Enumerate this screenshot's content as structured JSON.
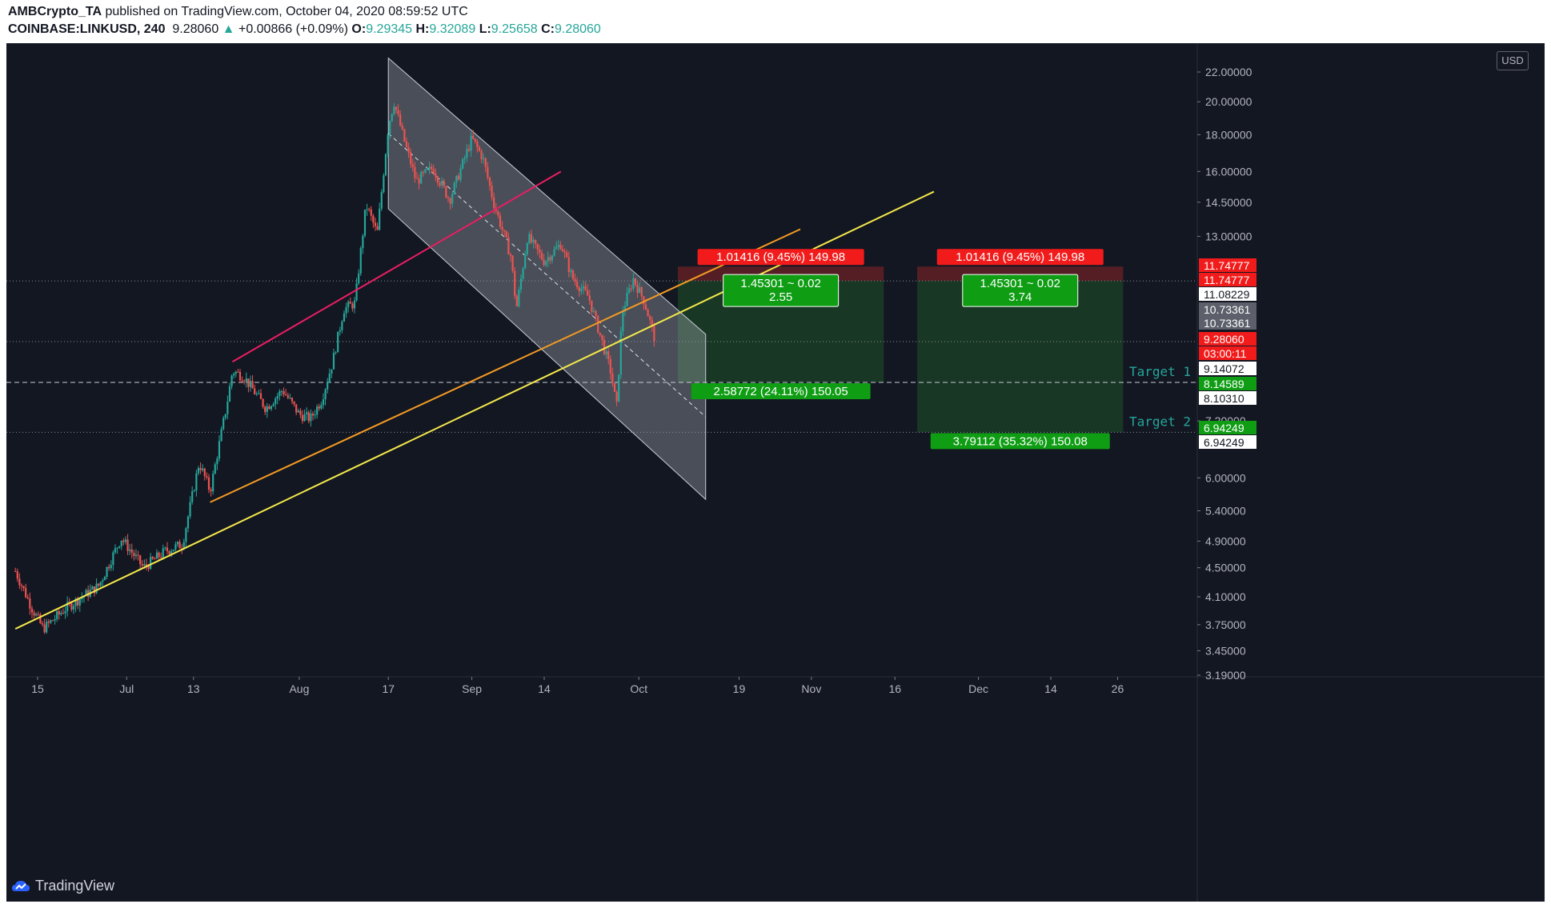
{
  "header": {
    "publisher": "AMBCrypto_TA",
    "published_text": "published on TradingView.com, October 04, 2020 08:59:52 UTC",
    "symbol": "COINBASE:LINKUSD, 240",
    "last": "9.28060",
    "change": "+0.00866 (+0.09%)",
    "o_label": "O:",
    "o": "9.29345",
    "h_label": "H:",
    "h": "9.32089",
    "l_label": "L:",
    "l": "9.25658",
    "c_label": "C:",
    "c": "9.28060"
  },
  "currency": "USD",
  "footer": {
    "brand": "TradingView"
  },
  "colors": {
    "background": "#131722",
    "up": "#26a69a",
    "down": "#ef5350",
    "yellow_line": "#f5e94a",
    "orange_line": "#f59b23",
    "pink_line": "#e91e63",
    "stop_zone": "#5c1f25",
    "target_zone": "#1b3b26"
  },
  "chart_data": {
    "type": "candlestick",
    "title": "",
    "price_scale": "log",
    "ylim": [
      2.9,
      24.5
    ],
    "x_ticks": [
      "15",
      "Jul",
      "13",
      "Aug",
      "17",
      "Sep",
      "14",
      "Oct",
      "19",
      "Nov",
      "16",
      "Dec",
      "14",
      "26"
    ],
    "y_ticks": [
      "22.00000",
      "20.00000",
      "18.00000",
      "16.00000",
      "14.50000",
      "13.00000",
      "7.20000",
      "6.00000",
      "5.40000",
      "4.90000",
      "4.50000",
      "4.10000",
      "3.75000",
      "3.45000",
      "3.19000"
    ],
    "price_path": [
      {
        "date": "2020-06-11",
        "price": 4.45
      },
      {
        "date": "2020-06-14",
        "price": 3.95
      },
      {
        "date": "2020-06-16",
        "price": 3.7
      },
      {
        "date": "2020-06-20",
        "price": 3.95
      },
      {
        "date": "2020-06-26",
        "price": 4.25
      },
      {
        "date": "2020-06-30",
        "price": 4.95
      },
      {
        "date": "2020-07-04",
        "price": 4.5
      },
      {
        "date": "2020-07-08",
        "price": 4.75
      },
      {
        "date": "2020-07-11",
        "price": 4.85
      },
      {
        "date": "2020-07-14",
        "price": 6.3
      },
      {
        "date": "2020-07-16",
        "price": 5.75
      },
      {
        "date": "2020-07-19",
        "price": 7.6
      },
      {
        "date": "2020-07-20",
        "price": 8.45
      },
      {
        "date": "2020-07-22",
        "price": 8.3
      },
      {
        "date": "2020-07-26",
        "price": 7.5
      },
      {
        "date": "2020-07-29",
        "price": 7.95
      },
      {
        "date": "2020-08-01",
        "price": 7.35
      },
      {
        "date": "2020-08-03",
        "price": 7.25
      },
      {
        "date": "2020-08-05",
        "price": 7.7
      },
      {
        "date": "2020-08-07",
        "price": 8.7
      },
      {
        "date": "2020-08-09",
        "price": 10.3
      },
      {
        "date": "2020-08-11",
        "price": 10.5
      },
      {
        "date": "2020-08-13",
        "price": 14.4
      },
      {
        "date": "2020-08-15",
        "price": 13.1
      },
      {
        "date": "2020-08-17",
        "price": 18.5
      },
      {
        "date": "2020-08-18",
        "price": 20.0
      },
      {
        "date": "2020-08-20",
        "price": 17.5
      },
      {
        "date": "2020-08-22",
        "price": 15.5
      },
      {
        "date": "2020-08-25",
        "price": 16.2
      },
      {
        "date": "2020-08-28",
        "price": 14.6
      },
      {
        "date": "2020-09-01",
        "price": 17.8
      },
      {
        "date": "2020-09-03",
        "price": 16.7
      },
      {
        "date": "2020-09-05",
        "price": 14.4
      },
      {
        "date": "2020-09-08",
        "price": 12.2
      },
      {
        "date": "2020-09-09",
        "price": 10.3
      },
      {
        "date": "2020-09-11",
        "price": 13.0
      },
      {
        "date": "2020-09-14",
        "price": 12.0
      },
      {
        "date": "2020-09-17",
        "price": 12.7
      },
      {
        "date": "2020-09-19",
        "price": 11.4
      },
      {
        "date": "2020-09-22",
        "price": 10.7
      },
      {
        "date": "2020-09-24",
        "price": 9.5
      },
      {
        "date": "2020-09-26",
        "price": 8.4
      },
      {
        "date": "2020-09-27",
        "price": 7.5
      },
      {
        "date": "2020-09-28",
        "price": 10.2
      },
      {
        "date": "2020-09-30",
        "price": 11.35
      },
      {
        "date": "2020-10-02",
        "price": 10.55
      },
      {
        "date": "2020-10-04",
        "price": 9.28
      }
    ],
    "lines": [
      {
        "name": "rising-support",
        "color": "#f5e94a",
        "from": {
          "date": "2020-06-11",
          "price": 3.7
        },
        "to": {
          "date": "2020-11-23",
          "price": 15.0
        }
      },
      {
        "name": "orange-trendline",
        "color": "#f59b23",
        "from": {
          "date": "2020-07-16",
          "price": 5.55
        },
        "to": {
          "date": "2020-10-30",
          "price": 13.3
        }
      },
      {
        "name": "pink-trendline",
        "color": "#e91e63",
        "from": {
          "date": "2020-07-20",
          "price": 8.7
        },
        "to": {
          "date": "2020-09-17",
          "price": 16.0
        }
      }
    ],
    "channel": {
      "upper_start": {
        "date": "2020-08-17",
        "price": 23.0
      },
      "upper_end": {
        "date": "2020-10-13",
        "price": 9.5
      },
      "lower_start": {
        "date": "2020-08-17",
        "price": 14.2
      },
      "lower_end": {
        "date": "2020-10-13",
        "price": 5.6
      }
    },
    "horizontal_levels": [
      11.27,
      9.28,
      8.14589,
      6.94249
    ],
    "right_labels": [
      {
        "text": "11.74777",
        "style": "red"
      },
      {
        "text": "11.74777",
        "style": "red"
      },
      {
        "text": "11.08229",
        "style": "white"
      },
      {
        "text": "10.73361",
        "style": "gray"
      },
      {
        "text": "10.73361",
        "style": "gray"
      },
      {
        "text": "9.28060",
        "style": "red"
      },
      {
        "text": "03:00:11",
        "style": "red"
      },
      {
        "text": "9.14072",
        "style": "white"
      },
      {
        "text": "8.14589",
        "style": "green"
      },
      {
        "text": "8.10310",
        "style": "white"
      },
      {
        "text": "6.94249",
        "style": "green"
      },
      {
        "text": "6.94249",
        "style": "white"
      }
    ],
    "positions": [
      {
        "stop_label": "1.01416 (9.45%) 149.98",
        "rr_line1": "1.45301 ~ 0.02",
        "rr_line2": "2.55",
        "target_label": "2.58772 (24.11%) 150.05",
        "entry": 11.27,
        "stop": 11.8,
        "target": 8.14589,
        "start": "2020-10-08",
        "end": "2020-11-14"
      },
      {
        "stop_label": "1.01416 (9.45%) 149.98",
        "rr_line1": "1.45301 ~ 0.02",
        "rr_line2": "3.74",
        "target_label": "3.79112 (35.32%) 150.08",
        "entry": 11.27,
        "stop": 11.8,
        "target": 6.94249,
        "start": "2020-11-20",
        "end": "2020-12-27"
      }
    ],
    "annotations": [
      "Target 1",
      "Target 2"
    ]
  }
}
